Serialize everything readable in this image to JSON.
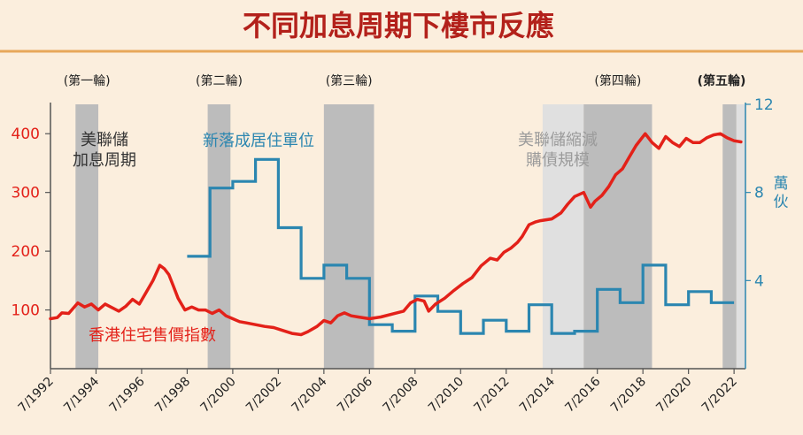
{
  "title": "不同加息周期下樓市反應",
  "chart_data": {
    "type": "line",
    "x_tick_labels": [
      "7/1992",
      "7/1994",
      "7/1996",
      "7/1998",
      "7/2000",
      "7/2002",
      "7/2004",
      "7/2006",
      "7/2008",
      "7/2010",
      "7/2012",
      "7/2014",
      "7/2016",
      "7/2018",
      "7/2020",
      "7/2022"
    ],
    "x_tick_years": [
      1992.5,
      1994.5,
      1996.5,
      1998.5,
      2000.5,
      2002.5,
      2004.5,
      2006.5,
      2008.5,
      2010.5,
      2012.5,
      2014.5,
      2016.5,
      2018.5,
      2020.5,
      2022.5
    ],
    "xlim": [
      1992.5,
      2023.0
    ],
    "y_left": {
      "ylim": [
        0,
        450
      ],
      "ticks": [
        100,
        200,
        300,
        400
      ],
      "tick_labels": [
        "100",
        "200",
        "300",
        "400"
      ]
    },
    "y_right": {
      "ylim": [
        0,
        12
      ],
      "ticks": [
        4,
        8,
        12
      ],
      "tick_labels": [
        "4",
        "8",
        "12"
      ],
      "unit_label": [
        "萬",
        "伙"
      ]
    },
    "grid": false,
    "hike_cycles": [
      {
        "label": "(第一輪)",
        "bold": false,
        "start": 1993.6,
        "end": 1994.6
      },
      {
        "label": "(第二輪)",
        "bold": false,
        "start": 1999.4,
        "end": 2000.4
      },
      {
        "label": "(第三輪)",
        "bold": false,
        "start": 2004.5,
        "end": 2006.7
      },
      {
        "label": "(第四輪)",
        "bold": false,
        "start": 2015.9,
        "end": 2018.9
      },
      {
        "label": "(第五輪)",
        "bold": true,
        "start": 2022.0,
        "end": 2022.6
      }
    ],
    "qe_periods": [
      {
        "start": 2014.1,
        "end": 2015.9
      },
      {
        "start": 2022.6,
        "end": 2023.0
      }
    ],
    "annotations": {
      "fed_hike": [
        "美聯儲",
        "加息周期"
      ],
      "new_units": "新落成居住單位",
      "qe_taper": [
        "美聯儲縮減",
        "購債規模"
      ],
      "price_index": "香港住宅售價指數"
    },
    "colors": {
      "price_index": "#e32119",
      "new_units": "#2b86b0",
      "hike_band": "#bcbcbc",
      "qe_band": "#e0e0e0"
    },
    "series": [
      {
        "name": "香港住宅售價指數",
        "axis": "left",
        "color": "#e32119",
        "x": [
          1992.5,
          1992.8,
          1993.0,
          1993.3,
          1993.7,
          1994.0,
          1994.3,
          1994.6,
          1994.9,
          1995.2,
          1995.5,
          1995.8,
          1996.1,
          1996.4,
          1996.7,
          1997.0,
          1997.3,
          1997.5,
          1997.7,
          1997.9,
          1998.1,
          1998.4,
          1998.7,
          1999.0,
          1999.3,
          1999.6,
          1999.9,
          2000.2,
          2000.5,
          2000.8,
          2001.1,
          2001.5,
          2001.9,
          2002.3,
          2002.7,
          2003.1,
          2003.5,
          2003.8,
          2004.2,
          2004.5,
          2004.8,
          2005.1,
          2005.4,
          2005.7,
          2006.0,
          2006.5,
          2007.0,
          2007.5,
          2008.0,
          2008.3,
          2008.6,
          2008.9,
          2009.1,
          2009.4,
          2009.8,
          2010.2,
          2010.6,
          2011.0,
          2011.4,
          2011.8,
          2012.1,
          2012.4,
          2012.7,
          2013.0,
          2013.2,
          2013.5,
          2013.8,
          2014.0,
          2014.5,
          2014.9,
          2015.2,
          2015.5,
          2015.9,
          2016.2,
          2016.4,
          2016.7,
          2017.0,
          2017.3,
          2017.6,
          2017.9,
          2018.2,
          2018.6,
          2018.9,
          2019.2,
          2019.5,
          2019.8,
          2020.1,
          2020.4,
          2020.7,
          2021.0,
          2021.3,
          2021.6,
          2021.9,
          2022.2,
          2022.5,
          2022.8
        ],
        "values": [
          85,
          87,
          95,
          94,
          112,
          105,
          110,
          100,
          110,
          104,
          98,
          106,
          118,
          110,
          130,
          150,
          176,
          170,
          160,
          140,
          120,
          100,
          105,
          100,
          100,
          94,
          100,
          90,
          85,
          80,
          78,
          75,
          72,
          70,
          65,
          60,
          58,
          63,
          72,
          82,
          78,
          90,
          95,
          90,
          88,
          85,
          88,
          93,
          98,
          112,
          118,
          115,
          98,
          110,
          120,
          133,
          145,
          155,
          175,
          188,
          185,
          198,
          205,
          215,
          225,
          245,
          250,
          252,
          255,
          265,
          280,
          293,
          300,
          275,
          285,
          295,
          310,
          330,
          340,
          360,
          380,
          400,
          385,
          375,
          395,
          385,
          378,
          392,
          385,
          385,
          393,
          398,
          400,
          393,
          388,
          386
        ]
      },
      {
        "name": "新落成居住單位",
        "axis": "right",
        "color": "#2b86b0",
        "step_x": [
          1998.5,
          1999.5,
          2000.5,
          2001.5,
          2002.5,
          2003.5,
          2004.5,
          2005.5,
          2006.5,
          2007.5,
          2008.5,
          2009.5,
          2010.5,
          2011.5,
          2012.5,
          2013.5,
          2014.5,
          2015.5,
          2016.5,
          2017.5,
          2018.5,
          2019.5,
          2020.5,
          2021.5,
          2022.5
        ],
        "values": [
          5.1,
          8.2,
          8.5,
          9.5,
          6.4,
          4.1,
          4.7,
          4.1,
          2.0,
          1.7,
          3.3,
          2.6,
          1.6,
          2.2,
          1.7,
          2.9,
          1.6,
          1.7,
          3.6,
          3.0,
          4.7,
          2.9,
          3.5,
          3.0
        ]
      }
    ]
  }
}
